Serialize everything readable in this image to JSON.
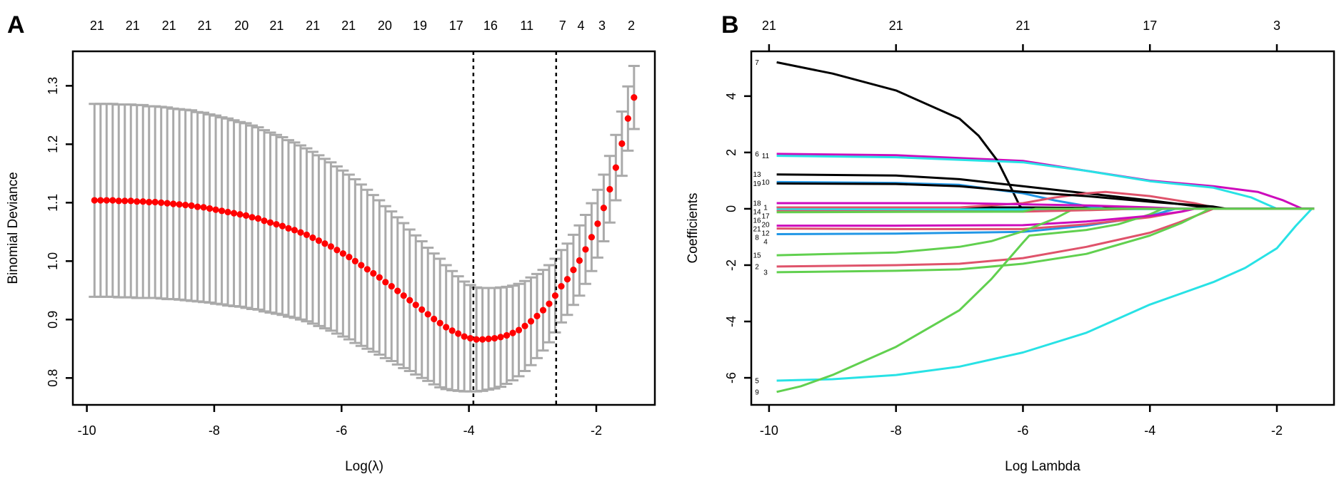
{
  "panels": {
    "a_label": "A",
    "b_label": "B"
  },
  "chart_data": [
    {
      "type": "scatter",
      "subtype": "cv-errorbar",
      "title": "",
      "xlabel": "Log(λ)",
      "ylabel": "Binomial Deviance",
      "xlim": [
        -10.22,
        -1.08
      ],
      "ylim": [
        0.754,
        1.359
      ],
      "x_tick_labels": [
        "-10",
        "-8",
        "-6",
        "-4",
        "-2"
      ],
      "y_tick_labels": [
        "0.8",
        "0.9",
        "1.0",
        "1.1",
        "1.2",
        "1.3"
      ],
      "top_labels": [
        {
          "x": -9.84,
          "label": "21"
        },
        {
          "x": -9.28,
          "label": "21"
        },
        {
          "x": -8.71,
          "label": "21"
        },
        {
          "x": -8.15,
          "label": "21"
        },
        {
          "x": -7.57,
          "label": "20"
        },
        {
          "x": -7.02,
          "label": "21"
        },
        {
          "x": -6.45,
          "label": "21"
        },
        {
          "x": -5.89,
          "label": "21"
        },
        {
          "x": -5.32,
          "label": "20"
        },
        {
          "x": -4.77,
          "label": "19"
        },
        {
          "x": -4.2,
          "label": "17"
        },
        {
          "x": -3.66,
          "label": "16"
        },
        {
          "x": -3.09,
          "label": "11"
        },
        {
          "x": -2.53,
          "label": "7"
        },
        {
          "x": -2.24,
          "label": "4"
        },
        {
          "x": -1.91,
          "label": "3"
        },
        {
          "x": -1.45,
          "label": "2"
        }
      ],
      "vlines": {
        "lambda_min": -3.93,
        "lambda_1se": -2.63
      },
      "log_lambda_start": -9.88,
      "log_lambda_step": 0.0952,
      "mean": [
        1.104,
        1.104,
        1.104,
        1.104,
        1.103,
        1.103,
        1.103,
        1.102,
        1.102,
        1.101,
        1.101,
        1.1,
        1.099,
        1.098,
        1.097,
        1.096,
        1.095,
        1.093,
        1.092,
        1.09,
        1.088,
        1.086,
        1.084,
        1.082,
        1.08,
        1.078,
        1.075,
        1.073,
        1.069,
        1.066,
        1.063,
        1.06,
        1.056,
        1.053,
        1.049,
        1.045,
        1.04,
        1.035,
        1.03,
        1.025,
        1.019,
        1.013,
        1.007,
        1.0,
        0.993,
        0.986,
        0.979,
        0.972,
        0.964,
        0.957,
        0.949,
        0.941,
        0.933,
        0.925,
        0.917,
        0.909,
        0.901,
        0.894,
        0.887,
        0.881,
        0.876,
        0.871,
        0.868,
        0.866,
        0.866,
        0.867,
        0.868,
        0.87,
        0.873,
        0.877,
        0.882,
        0.889,
        0.897,
        0.906,
        0.916,
        0.927,
        0.941,
        0.957,
        0.969,
        0.985,
        1.001,
        1.02,
        1.041,
        1.064,
        1.091,
        1.123,
        1.16,
        1.201,
        1.244,
        1.28
      ],
      "se": [
        0.165,
        0.165,
        0.165,
        0.165,
        0.165,
        0.165,
        0.165,
        0.165,
        0.165,
        0.164,
        0.164,
        0.164,
        0.164,
        0.163,
        0.163,
        0.163,
        0.163,
        0.162,
        0.162,
        0.161,
        0.161,
        0.16,
        0.16,
        0.159,
        0.158,
        0.158,
        0.157,
        0.156,
        0.155,
        0.154,
        0.153,
        0.152,
        0.151,
        0.15,
        0.149,
        0.148,
        0.147,
        0.146,
        0.145,
        0.144,
        0.143,
        0.142,
        0.141,
        0.14,
        0.138,
        0.136,
        0.134,
        0.132,
        0.13,
        0.128,
        0.126,
        0.124,
        0.121,
        0.119,
        0.117,
        0.114,
        0.112,
        0.11,
        0.106,
        0.102,
        0.098,
        0.094,
        0.091,
        0.089,
        0.088,
        0.087,
        0.086,
        0.085,
        0.083,
        0.081,
        0.079,
        0.077,
        0.075,
        0.072,
        0.069,
        0.066,
        0.063,
        0.062,
        0.061,
        0.06,
        0.06,
        0.059,
        0.058,
        0.058,
        0.057,
        0.057,
        0.056,
        0.055,
        0.055,
        0.054
      ],
      "colors": {
        "point": "#FF0000",
        "errorbar": "#AAAAAA",
        "vline": "#000000"
      }
    },
    {
      "type": "line",
      "subtype": "coefficient-paths",
      "title": "",
      "xlabel": "Log Lambda",
      "ylabel": "Coefficients",
      "xlim": [
        -10.28,
        -1.1
      ],
      "ylim": [
        -6.96,
        5.59
      ],
      "x_tick_labels": [
        "-10",
        "-8",
        "-6",
        "-4",
        "-2"
      ],
      "y_tick_labels": [
        "-6",
        "-4",
        "-2",
        "0",
        "2",
        "4"
      ],
      "top_labels": [
        {
          "x": -10,
          "label": "21"
        },
        {
          "x": -8,
          "label": "21"
        },
        {
          "x": -6,
          "label": "21"
        },
        {
          "x": -4,
          "label": "17"
        },
        {
          "x": -2,
          "label": "3"
        }
      ],
      "log_lambda_end": -1.41,
      "series": [
        {
          "name": "1",
          "color": "#000000",
          "points": [
            [
              -9.88,
              0.05
            ],
            [
              -6,
              0.05
            ],
            [
              -4.5,
              0.02
            ],
            [
              -4,
              0
            ]
          ]
        },
        {
          "name": "2",
          "color": "#DF536B",
          "points": [
            [
              -9.88,
              -2.05
            ],
            [
              -8,
              -2.0
            ],
            [
              -7,
              -1.95
            ],
            [
              -6,
              -1.75
            ],
            [
              -5,
              -1.35
            ],
            [
              -4,
              -0.85
            ],
            [
              -3.5,
              -0.45
            ],
            [
              -3,
              0
            ]
          ]
        },
        {
          "name": "3",
          "color": "#61D04F",
          "points": [
            [
              -9.88,
              -2.25
            ],
            [
              -8,
              -2.2
            ],
            [
              -7,
              -2.15
            ],
            [
              -6,
              -1.95
            ],
            [
              -5,
              -1.6
            ],
            [
              -4,
              -0.95
            ],
            [
              -3.5,
              -0.5
            ],
            [
              -3.05,
              0
            ]
          ]
        },
        {
          "name": "4",
          "color": "#2297E6",
          "points": [
            [
              -9.88,
              -0.9
            ],
            [
              -8,
              -0.88
            ],
            [
              -6,
              -0.82
            ],
            [
              -5,
              -0.6
            ],
            [
              -4,
              -0.25
            ],
            [
              -3.6,
              0
            ]
          ]
        },
        {
          "name": "5",
          "color": "#28E2E5",
          "points": [
            [
              -9.88,
              -6.1
            ],
            [
              -9,
              -6.05
            ],
            [
              -8,
              -5.9
            ],
            [
              -7,
              -5.6
            ],
            [
              -6,
              -5.1
            ],
            [
              -5,
              -4.4
            ],
            [
              -4,
              -3.4
            ],
            [
              -3,
              -2.6
            ],
            [
              -2.5,
              -2.1
            ],
            [
              -2,
              -1.4
            ],
            [
              -1.7,
              -0.6
            ],
            [
              -1.45,
              0
            ]
          ]
        },
        {
          "name": "6",
          "color": "#CD0BBC",
          "points": [
            [
              -9.88,
              1.95
            ],
            [
              -8,
              1.9
            ],
            [
              -6,
              1.7
            ],
            [
              -5,
              1.35
            ],
            [
              -4,
              1.0
            ],
            [
              -3,
              0.8
            ],
            [
              -2.3,
              0.6
            ],
            [
              -1.9,
              0.3
            ],
            [
              -1.6,
              0
            ]
          ]
        },
        {
          "name": "7",
          "color": "#000000",
          "points": [
            [
              -9.88,
              5.2
            ],
            [
              -9,
              4.8
            ],
            [
              -8,
              4.2
            ],
            [
              -7,
              3.2
            ],
            [
              -6.7,
              2.6
            ],
            [
              -6.4,
              1.7
            ],
            [
              -6.2,
              0.8
            ],
            [
              -6.05,
              0.1
            ],
            [
              -6.0,
              0
            ]
          ]
        },
        {
          "name": "8",
          "color": "#DF536B",
          "points": [
            [
              -9.88,
              -0.7
            ],
            [
              -8,
              -0.72
            ],
            [
              -6,
              -0.72
            ],
            [
              -5,
              -0.55
            ],
            [
              -4,
              -0.3
            ],
            [
              -3.5,
              -0.1
            ],
            [
              -3.3,
              0
            ]
          ]
        },
        {
          "name": "9",
          "color": "#61D04F",
          "points": [
            [
              -9.88,
              -6.5
            ],
            [
              -9.5,
              -6.3
            ],
            [
              -9,
              -5.9
            ],
            [
              -8,
              -4.9
            ],
            [
              -7,
              -3.6
            ],
            [
              -6.5,
              -2.5
            ],
            [
              -6,
              -1.2
            ],
            [
              -5.9,
              -0.95
            ],
            [
              -5,
              -0.75
            ],
            [
              -4.5,
              -0.55
            ],
            [
              -4,
              -0.2
            ],
            [
              -3.8,
              0
            ]
          ]
        },
        {
          "name": "10",
          "color": "#2297E6",
          "points": [
            [
              -9.88,
              0.95
            ],
            [
              -8,
              0.92
            ],
            [
              -7,
              0.85
            ],
            [
              -6,
              0.55
            ],
            [
              -5.5,
              0.3
            ],
            [
              -5,
              0.1
            ],
            [
              -4.7,
              0
            ]
          ]
        },
        {
          "name": "11",
          "color": "#28E2E5",
          "points": [
            [
              -9.88,
              1.88
            ],
            [
              -8,
              1.83
            ],
            [
              -6,
              1.65
            ],
            [
              -5,
              1.35
            ],
            [
              -4,
              0.98
            ],
            [
              -3,
              0.75
            ],
            [
              -2.4,
              0.4
            ],
            [
              -2.1,
              0.1
            ],
            [
              -2.0,
              0
            ]
          ]
        },
        {
          "name": "12",
          "color": "#CD0BBC",
          "points": [
            [
              -9.88,
              -0.6
            ],
            [
              -8,
              -0.6
            ],
            [
              -6,
              -0.58
            ],
            [
              -5,
              -0.45
            ],
            [
              -4,
              -0.25
            ],
            [
              -3.5,
              -0.1
            ],
            [
              -3.3,
              0
            ]
          ]
        },
        {
          "name": "13",
          "color": "#000000",
          "points": [
            [
              -9.88,
              1.22
            ],
            [
              -8,
              1.18
            ],
            [
              -7,
              1.05
            ],
            [
              -6,
              0.8
            ],
            [
              -5,
              0.55
            ],
            [
              -4,
              0.3
            ],
            [
              -3.3,
              0.1
            ],
            [
              -3.0,
              0
            ]
          ]
        },
        {
          "name": "14",
          "color": "#DF536B",
          "points": [
            [
              -9.88,
              0.05
            ],
            [
              -7,
              0.05
            ],
            [
              -6,
              0.2
            ],
            [
              -5.5,
              0.4
            ],
            [
              -5,
              0.55
            ],
            [
              -4.7,
              0.6
            ],
            [
              -4,
              0.45
            ],
            [
              -3.3,
              0.2
            ],
            [
              -2.9,
              0
            ]
          ]
        },
        {
          "name": "15",
          "color": "#61D04F",
          "points": [
            [
              -9.88,
              -1.65
            ],
            [
              -8,
              -1.55
            ],
            [
              -7,
              -1.35
            ],
            [
              -6.5,
              -1.15
            ],
            [
              -6,
              -0.8
            ],
            [
              -5.5,
              -0.35
            ],
            [
              -5.2,
              0
            ]
          ]
        },
        {
          "name": "16",
          "color": "#2297E6",
          "points": [
            [
              -9.88,
              -0.05
            ],
            [
              -6,
              -0.05
            ],
            [
              -5,
              0
            ]
          ]
        },
        {
          "name": "17",
          "color": "#28E2E5",
          "points": [
            [
              -9.88,
              -0.02
            ],
            [
              -5,
              -0.02
            ],
            [
              -3,
              0
            ]
          ]
        },
        {
          "name": "18",
          "color": "#CD0BBC",
          "points": [
            [
              -9.88,
              0.2
            ],
            [
              -7,
              0.2
            ],
            [
              -5,
              0.12
            ],
            [
              -4,
              0.05
            ],
            [
              -3.5,
              0
            ]
          ]
        },
        {
          "name": "19",
          "color": "#000000",
          "points": [
            [
              -9.88,
              0.9
            ],
            [
              -8,
              0.88
            ],
            [
              -7,
              0.8
            ],
            [
              -6,
              0.6
            ],
            [
              -5,
              0.45
            ],
            [
              -4,
              0.25
            ],
            [
              -3,
              0.08
            ],
            [
              -2.8,
              0
            ]
          ]
        },
        {
          "name": "20",
          "color": "#DF536B",
          "points": [
            [
              -9.88,
              -0.08
            ],
            [
              -6,
              -0.1
            ],
            [
              -5,
              -0.05
            ],
            [
              -4.2,
              0
            ]
          ]
        },
        {
          "name": "21",
          "color": "#61D04F",
          "points": [
            [
              -9.88,
              -0.12
            ],
            [
              -6,
              -0.1
            ],
            [
              -5.8,
              0
            ]
          ]
        }
      ]
    }
  ]
}
